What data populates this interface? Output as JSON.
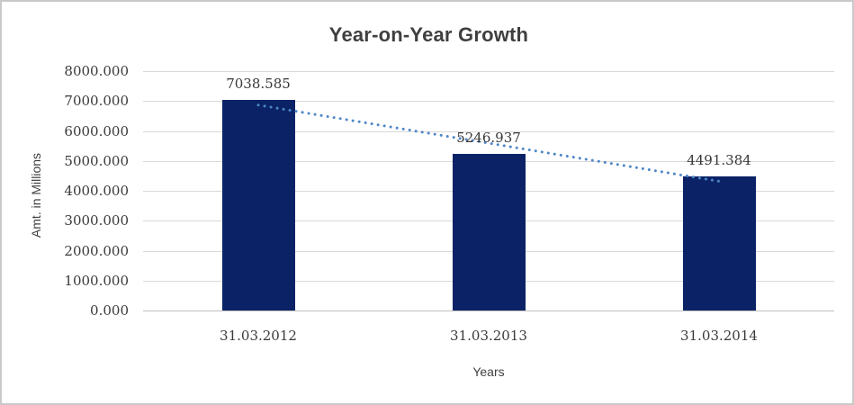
{
  "chart_data": {
    "type": "bar",
    "title": "Year-on-Year Growth",
    "xlabel": "Years",
    "ylabel": "Amt. in Millions",
    "categories": [
      "31.03.2012",
      "31.03.2013",
      "31.03.2014"
    ],
    "values": [
      7038.585,
      5246.937,
      4491.384
    ],
    "data_labels": [
      "7038.585",
      "5246.937",
      "4491.384"
    ],
    "ylim": [
      0,
      8000
    ],
    "ytick_step": 1000,
    "ytick_decimals": 3,
    "grid": true,
    "legend": "none",
    "bar_color": "#0b2366",
    "gridline_color": "#d9d9d9",
    "trendline": {
      "type": "linear",
      "style": "dotted",
      "color": "#4e86c8"
    }
  }
}
